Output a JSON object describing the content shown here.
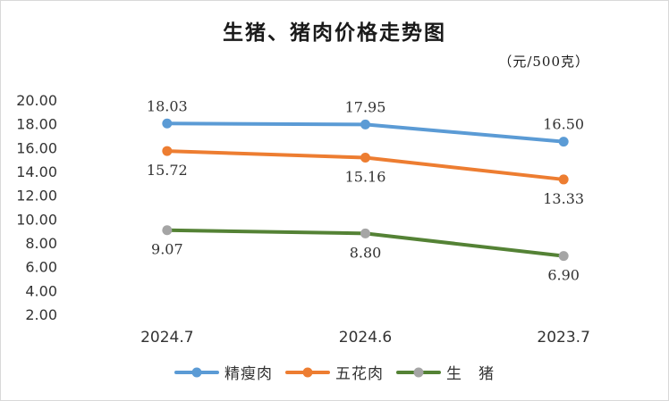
{
  "chart_data": {
    "type": "line",
    "title": "生猪、猪肉价格走势图",
    "unit_label": "（元/500克）",
    "categories": [
      "2024.7",
      "2024.6",
      "2023.7"
    ],
    "y_ticks": [
      "20.00",
      "18.00",
      "16.00",
      "14.00",
      "12.00",
      "10.00",
      "8.00",
      "6.00",
      "4.00",
      "2.00"
    ],
    "ylim": [
      2,
      20
    ],
    "grid": false,
    "legend_position": "bottom",
    "series": [
      {
        "name": "精瘦肉",
        "color": "#5b9bd5",
        "values": [
          18.03,
          17.95,
          16.5
        ],
        "labels": [
          "18.03",
          "17.95",
          "16.50"
        ],
        "label_pos": "above"
      },
      {
        "name": "五花肉",
        "color": "#ed7d31",
        "values": [
          15.72,
          15.16,
          13.33
        ],
        "labels": [
          "15.72",
          "15.16",
          "13.33"
        ],
        "label_pos": "below"
      },
      {
        "name": "生　猪",
        "color": "#548235",
        "marker_color": "#a5a5a5",
        "values": [
          9.07,
          8.8,
          6.9
        ],
        "labels": [
          "9.07",
          "8.80",
          "6.90"
        ],
        "label_pos": "below"
      }
    ]
  }
}
